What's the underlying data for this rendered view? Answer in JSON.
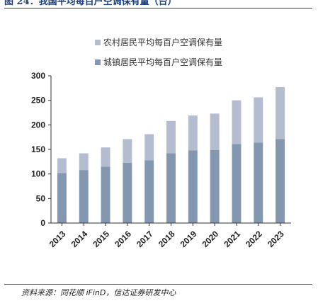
{
  "figure": {
    "title": "图 24：我国平均每百户空调保有量（台）",
    "source": "资料来源：同花顺 iFinD，信达证券研发中心"
  },
  "chart_data": {
    "type": "bar",
    "stacked": true,
    "categories": [
      "2013",
      "2014",
      "2015",
      "2016",
      "2017",
      "2018",
      "2019",
      "2020",
      "2021",
      "2022",
      "2023"
    ],
    "series": [
      {
        "name": "城镇居民平均每百户空调保有量",
        "color": "#8497b0",
        "values": [
          102,
          108,
          115,
          123,
          128,
          142,
          148,
          149,
          161,
          164,
          171
        ]
      },
      {
        "name": "农村居民平均每百户空调保有量",
        "color": "#b4bccf",
        "values": [
          30,
          34,
          39,
          48,
          53,
          66,
          71,
          74,
          89,
          92,
          106
        ]
      }
    ],
    "yticks": [
      0,
      50,
      100,
      150,
      200,
      250,
      300
    ],
    "ylim": [
      0,
      300
    ],
    "legend_position": "top",
    "grid": false
  }
}
